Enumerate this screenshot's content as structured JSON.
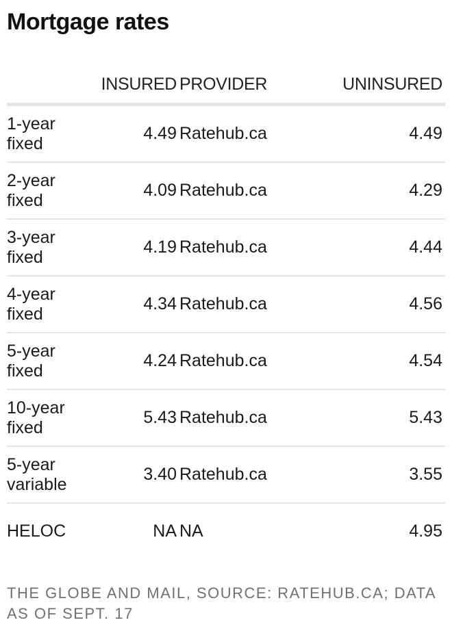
{
  "title": "Mortgage rates",
  "chart_data": {
    "type": "table",
    "columns": [
      "",
      "INSURED",
      "PROVIDER",
      "UNINSURED"
    ],
    "rows": [
      {
        "term": "1-year fixed",
        "insured": "4.49",
        "provider": "Ratehub.ca",
        "uninsured": "4.49"
      },
      {
        "term": "2-year fixed",
        "insured": "4.09",
        "provider": "Ratehub.ca",
        "uninsured": "4.29"
      },
      {
        "term": "3-year fixed",
        "insured": "4.19",
        "provider": "Ratehub.ca",
        "uninsured": "4.44"
      },
      {
        "term": "4-year fixed",
        "insured": "4.34",
        "provider": "Ratehub.ca",
        "uninsured": "4.56"
      },
      {
        "term": "5-year fixed",
        "insured": "4.24",
        "provider": "Ratehub.ca",
        "uninsured": "4.54"
      },
      {
        "term": "10-year fixed",
        "insured": "5.43",
        "provider": "Ratehub.ca",
        "uninsured": "5.43"
      },
      {
        "term": "5-year variable",
        "insured": "3.40",
        "provider": "Ratehub.ca",
        "uninsured": "3.55"
      },
      {
        "term": "HELOC",
        "insured": "NA",
        "provider": "NA",
        "uninsured": "4.95"
      }
    ]
  },
  "source": "THE GLOBE AND MAIL, SOURCE: RATEHUB.CA; DATA AS OF SEPT. 17"
}
